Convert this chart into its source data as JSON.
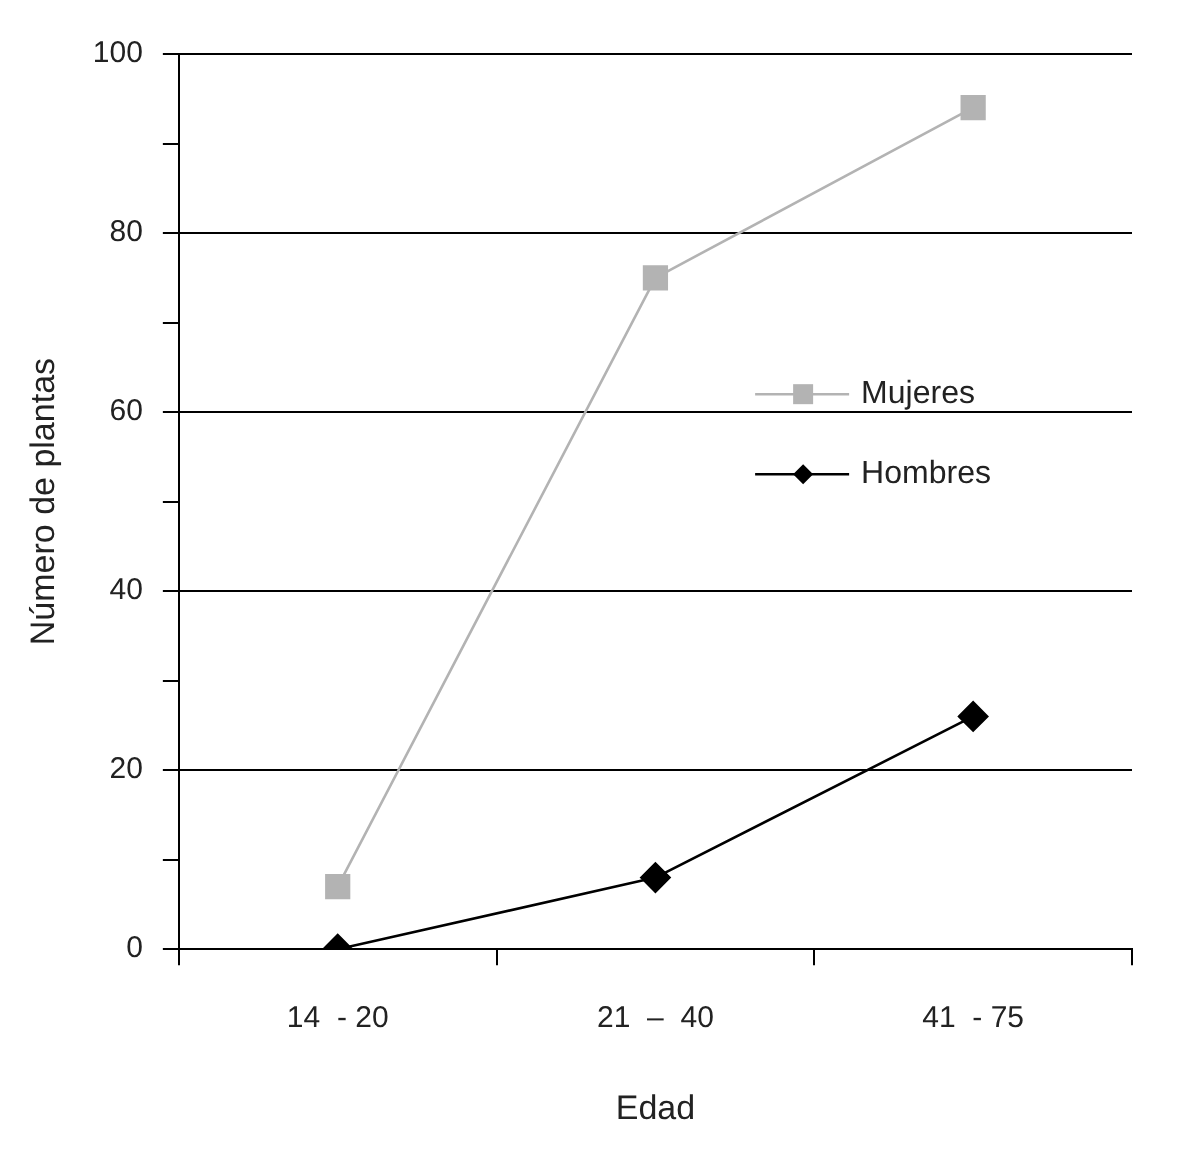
{
  "chart_data": {
    "type": "line",
    "xlabel": "Edad",
    "ylabel": "Número de plantas",
    "categories": [
      "14  - 20",
      "21  –  40",
      "41  - 75"
    ],
    "series": [
      {
        "name": "Mujeres",
        "color": "#b3b3b3",
        "marker": "square",
        "values": [
          7,
          75,
          94
        ]
      },
      {
        "name": "Hombres",
        "color": "#000000",
        "marker": "diamond",
        "values": [
          0,
          8,
          26
        ]
      }
    ],
    "ylim": [
      0,
      100
    ],
    "yticks": [
      0,
      {
        "value": 10,
        "label": null
      },
      20,
      {
        "value": 30,
        "label": null
      },
      40,
      {
        "value": 50,
        "label": null
      },
      60,
      {
        "value": 70,
        "label": null
      },
      80,
      {
        "value": 90,
        "label": null
      },
      100
    ],
    "grid": "y",
    "legend": "right",
    "line_style": "solid"
  }
}
